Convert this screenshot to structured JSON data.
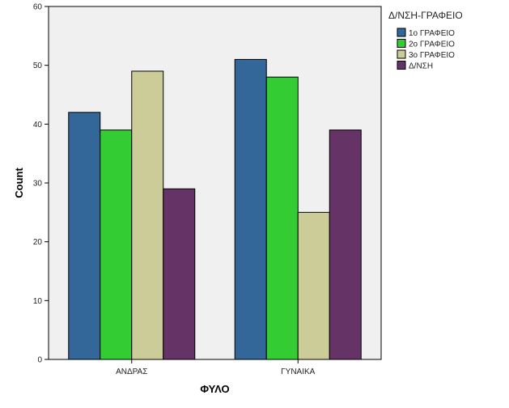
{
  "chart_data": {
    "type": "bar",
    "title": "",
    "xlabel": "ΦΥΛΟ",
    "ylabel": "Count",
    "categories": [
      "ΑΝΔΡΑΣ",
      "ΓΥΝΑΙΚΑ"
    ],
    "series": [
      {
        "name": "1ο ΓΡΑΦΕΙΟ",
        "values": [
          42,
          51
        ],
        "color": "#336699"
      },
      {
        "name": "2ο ΓΡΑΦΕΙΟ",
        "values": [
          39,
          48
        ],
        "color": "#33cc33"
      },
      {
        "name": "3ο ΓΡΑΦΕΙΟ",
        "values": [
          49,
          25
        ],
        "color": "#cccc99"
      },
      {
        "name": "Δ/ΝΣΗ",
        "values": [
          29,
          39
        ],
        "color": "#663366"
      }
    ],
    "ylim": [
      0,
      60
    ],
    "yticks": [
      0,
      10,
      20,
      30,
      40,
      50,
      60
    ],
    "grid": false,
    "legend": {
      "title": "Δ/ΝΣΗ-ΓΡΑΦΕΙΟ",
      "placement": "right"
    },
    "plot_background": "#f0f0f0"
  }
}
